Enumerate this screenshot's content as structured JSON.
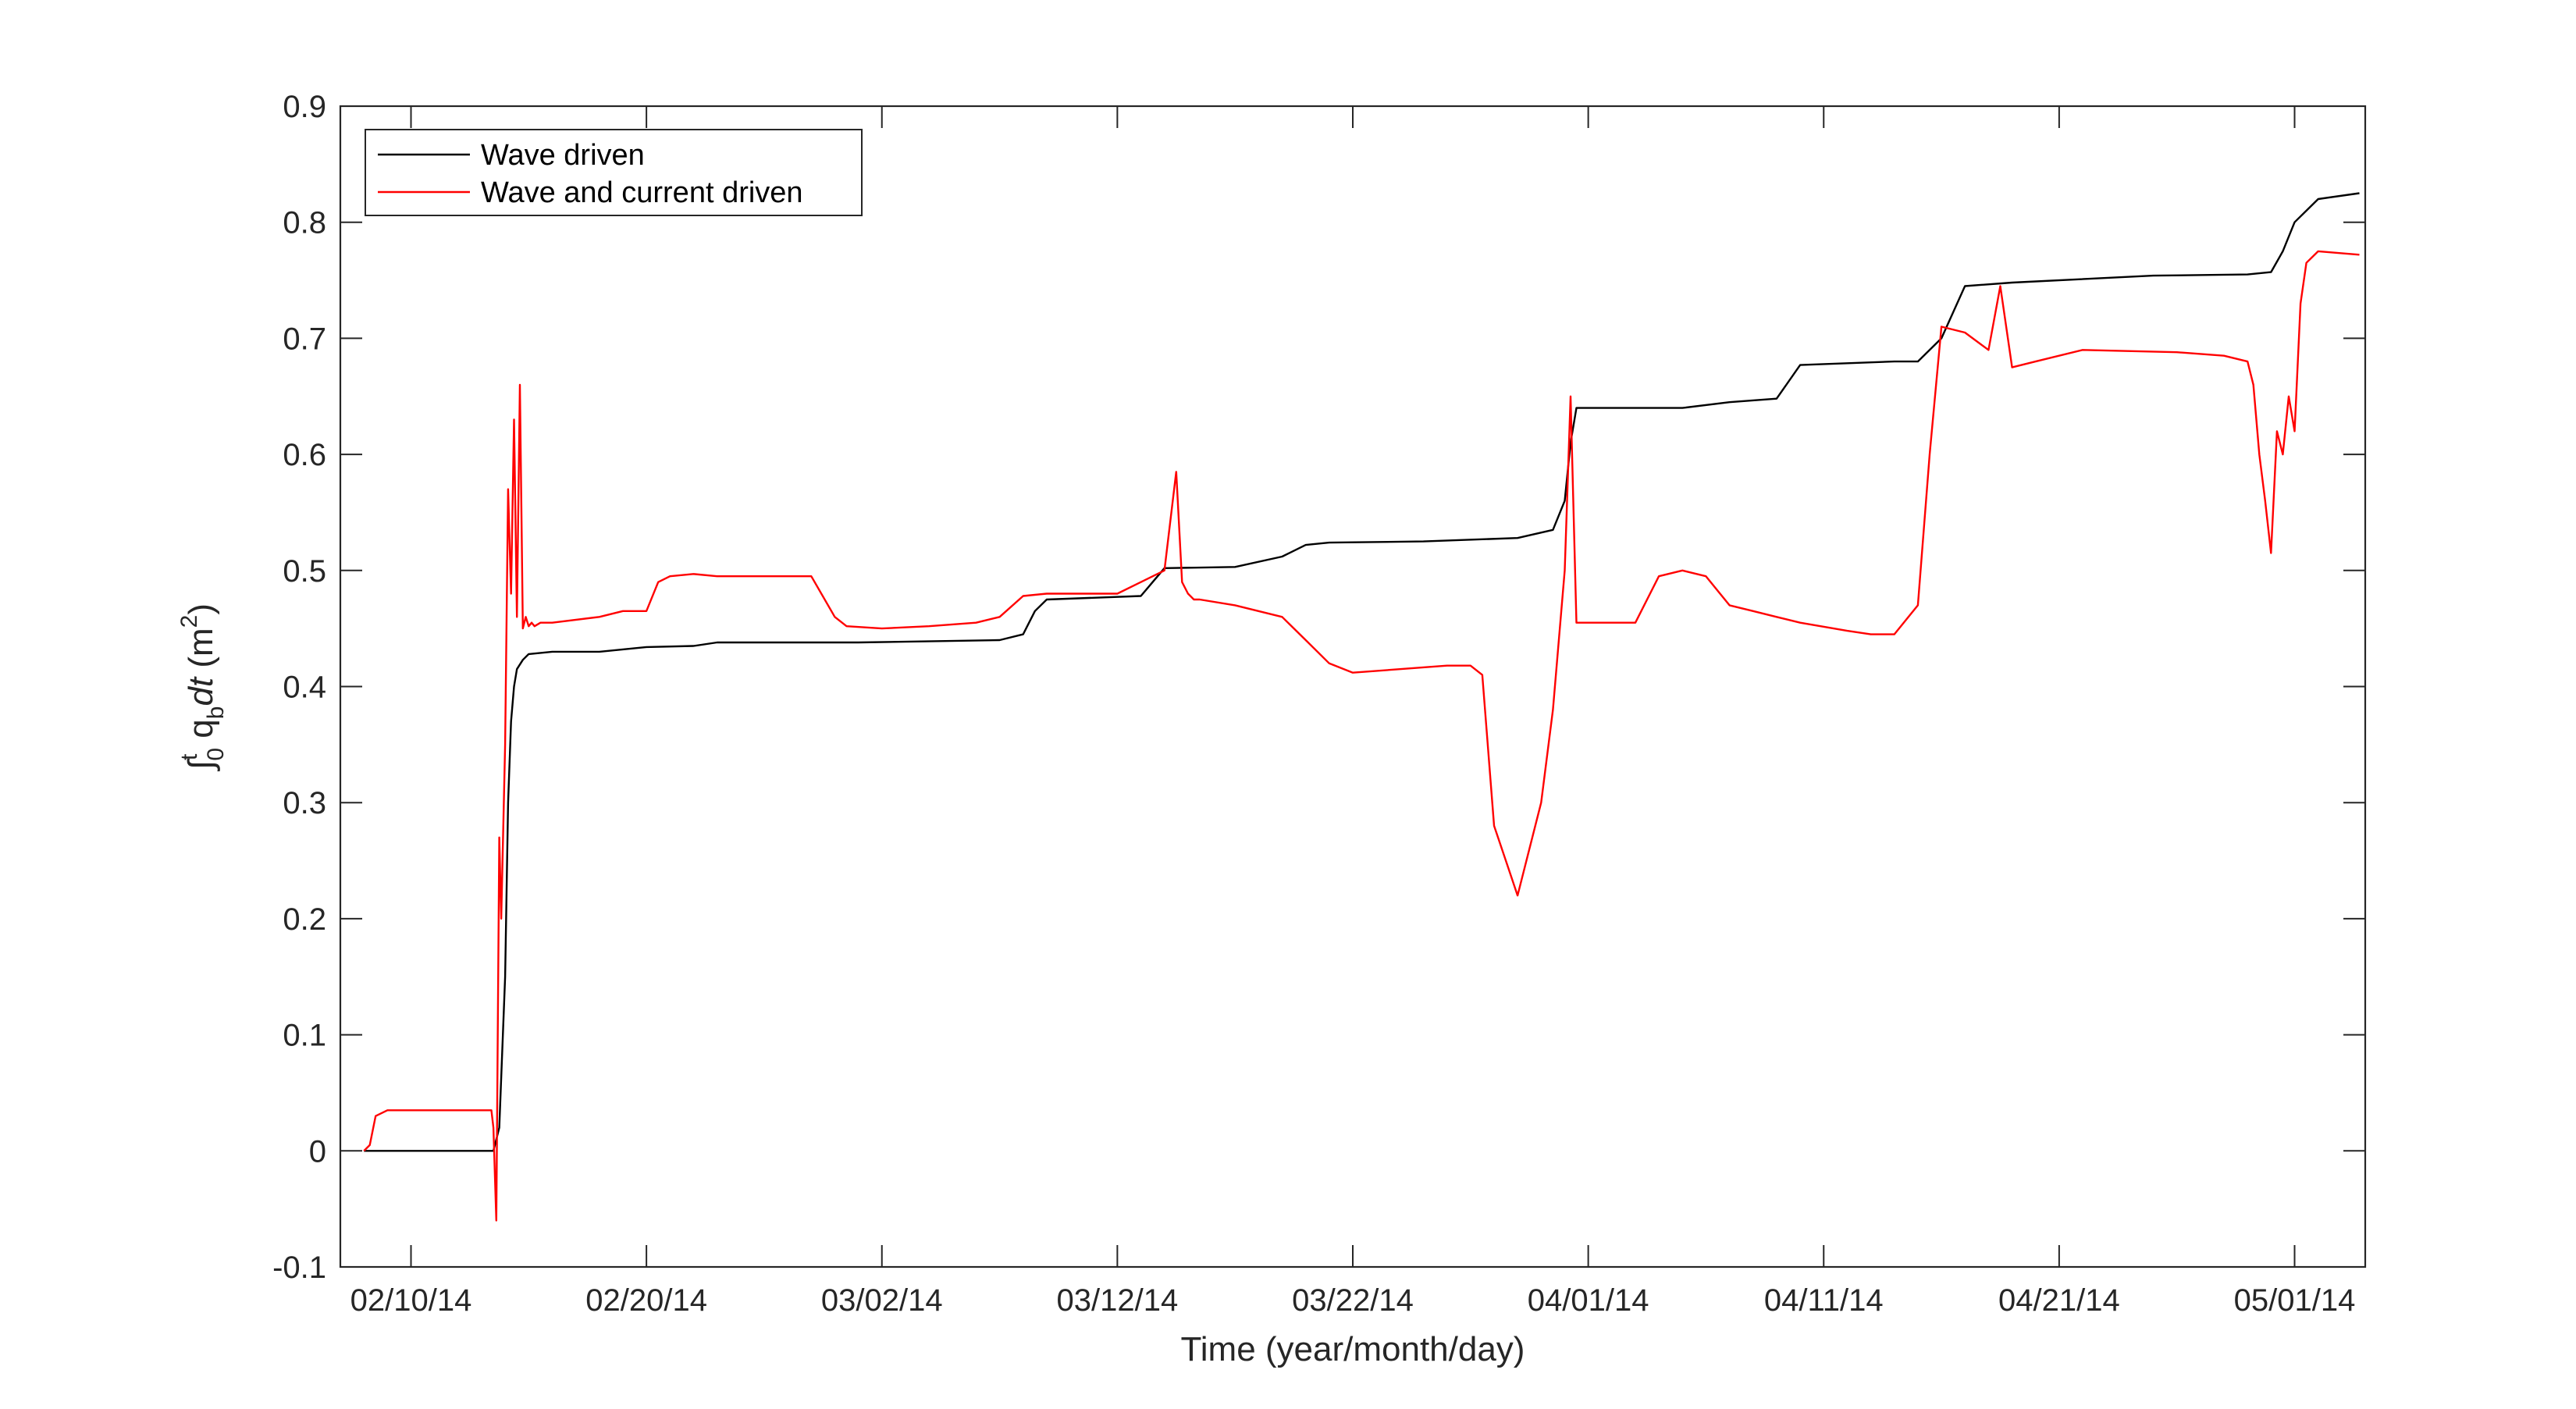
{
  "chart_data": {
    "type": "line",
    "title": "",
    "xlabel": "Time (year/month/day)",
    "ylabel_parts": {
      "integral": "∫",
      "upper": "t",
      "lower": "0",
      "q": " q",
      "qsub": "b",
      "dt": "dt",
      "unit_open": " (m",
      "unit_sup": "2",
      "unit_close": ")"
    },
    "ylim": [
      -0.1,
      0.9
    ],
    "yticks": [
      -0.1,
      0,
      0.1,
      0.2,
      0.3,
      0.4,
      0.5,
      0.6,
      0.7,
      0.8,
      0.9
    ],
    "yticklabels": [
      "-0.1",
      "0",
      "0.1",
      "0.2",
      "0.3",
      "0.4",
      "0.5",
      "0.6",
      "0.7",
      "0.8",
      "0.9"
    ],
    "xlim": [
      "2014-02-07",
      "2014-05-04"
    ],
    "xticks": [
      "2014-02-10",
      "2014-02-20",
      "2014-03-02",
      "2014-03-12",
      "2014-03-22",
      "2014-04-01",
      "2014-04-11",
      "2014-04-21",
      "2014-05-01"
    ],
    "xticklabels": [
      "02/10/14",
      "02/20/14",
      "03/02/14",
      "03/12/14",
      "03/22/14",
      "04/01/14",
      "04/11/14",
      "04/21/14",
      "05/01/14"
    ],
    "grid": false,
    "legend_position": "top-left",
    "series": [
      {
        "name": "Wave driven",
        "color": "#000000",
        "x": [
          "2014-02-08",
          "2014-02-13 12:00",
          "2014-02-13 18:00",
          "2014-02-14",
          "2014-02-14 03:00",
          "2014-02-14 06:00",
          "2014-02-14 09:00",
          "2014-02-14 12:00",
          "2014-02-14 18:00",
          "2014-02-15",
          "2014-02-16",
          "2014-02-18",
          "2014-02-19",
          "2014-02-20",
          "2014-02-22",
          "2014-02-23",
          "2014-03-01",
          "2014-03-07",
          "2014-03-08",
          "2014-03-08 12:00",
          "2014-03-09",
          "2014-03-13",
          "2014-03-13 12:00",
          "2014-03-14",
          "2014-03-17",
          "2014-03-19",
          "2014-03-20",
          "2014-03-21",
          "2014-03-25",
          "2014-03-29",
          "2014-03-30 12:00",
          "2014-03-31",
          "2014-03-31 06:00",
          "2014-03-31 12:00",
          "2014-04-02",
          "2014-04-05",
          "2014-04-07",
          "2014-04-09",
          "2014-04-10",
          "2014-04-14",
          "2014-04-15",
          "2014-04-16",
          "2014-04-17",
          "2014-04-19",
          "2014-04-25",
          "2014-04-29",
          "2014-04-30",
          "2014-04-30 12:00",
          "2014-05-01",
          "2014-05-02",
          "2014-05-03 18:00"
        ],
        "values": [
          0.0,
          0.0,
          0.02,
          0.15,
          0.3,
          0.37,
          0.4,
          0.415,
          0.423,
          0.428,
          0.43,
          0.43,
          0.432,
          0.434,
          0.435,
          0.438,
          0.438,
          0.44,
          0.445,
          0.465,
          0.475,
          0.478,
          0.49,
          0.502,
          0.503,
          0.512,
          0.522,
          0.524,
          0.525,
          0.528,
          0.535,
          0.56,
          0.61,
          0.64,
          0.64,
          0.64,
          0.645,
          0.648,
          0.677,
          0.68,
          0.68,
          0.7,
          0.745,
          0.748,
          0.754,
          0.755,
          0.757,
          0.775,
          0.8,
          0.82,
          0.825
        ]
      },
      {
        "name": "Wave and current driven",
        "color": "#ff0000",
        "x": [
          "2014-02-08",
          "2014-02-08 06:00",
          "2014-02-08 12:00",
          "2014-02-09",
          "2014-02-13 10:00",
          "2014-02-13 12:00",
          "2014-02-13 15:00",
          "2014-02-13 18:00",
          "2014-02-13 20:00",
          "2014-02-14",
          "2014-02-14 03:00",
          "2014-02-14 06:00",
          "2014-02-14 09:00",
          "2014-02-14 12:00",
          "2014-02-14 15:00",
          "2014-02-14 18:00",
          "2014-02-14 21:00",
          "2014-02-15",
          "2014-02-15 03:00",
          "2014-02-15 06:00",
          "2014-02-15 12:00",
          "2014-02-16",
          "2014-02-18",
          "2014-02-19",
          "2014-02-20",
          "2014-02-20 12:00",
          "2014-02-21",
          "2014-02-22",
          "2014-02-23",
          "2014-02-27",
          "2014-02-28",
          "2014-02-28 12:00",
          "2014-03-02",
          "2014-03-04",
          "2014-03-06",
          "2014-03-07",
          "2014-03-08",
          "2014-03-09",
          "2014-03-12",
          "2014-03-13",
          "2014-03-14",
          "2014-03-14 12:00",
          "2014-03-14 18:00",
          "2014-03-15",
          "2014-03-15 06:00",
          "2014-03-15 12:00",
          "2014-03-17",
          "2014-03-19",
          "2014-03-20",
          "2014-03-21",
          "2014-03-22",
          "2014-03-24",
          "2014-03-26",
          "2014-03-27",
          "2014-03-27 12:00",
          "2014-03-28",
          "2014-03-28 12:00",
          "2014-03-29",
          "2014-03-29 12:00",
          "2014-03-30",
          "2014-03-30 12:00",
          "2014-03-31",
          "2014-03-31 06:00",
          "2014-03-31 12:00",
          "2014-04-01",
          "2014-04-03",
          "2014-04-04",
          "2014-04-05",
          "2014-04-06",
          "2014-04-07",
          "2014-04-08",
          "2014-04-09",
          "2014-04-10",
          "2014-04-12",
          "2014-04-13",
          "2014-04-14",
          "2014-04-15",
          "2014-04-15 12:00",
          "2014-04-16",
          "2014-04-17",
          "2014-04-18",
          "2014-04-18 12:00",
          "2014-04-19",
          "2014-04-20",
          "2014-04-22",
          "2014-04-26",
          "2014-04-28",
          "2014-04-29",
          "2014-04-29 06:00",
          "2014-04-29 12:00",
          "2014-04-29 18:00",
          "2014-04-30",
          "2014-04-30 06:00",
          "2014-04-30 12:00",
          "2014-04-30 18:00",
          "2014-05-01",
          "2014-05-01 06:00",
          "2014-05-01 12:00",
          "2014-05-02",
          "2014-05-03 18:00"
        ],
        "values": [
          0.0,
          0.005,
          0.03,
          0.035,
          0.035,
          0.02,
          -0.06,
          0.27,
          0.2,
          0.35,
          0.57,
          0.48,
          0.63,
          0.46,
          0.66,
          0.45,
          0.46,
          0.452,
          0.455,
          0.452,
          0.455,
          0.455,
          0.46,
          0.465,
          0.465,
          0.49,
          0.495,
          0.497,
          0.495,
          0.495,
          0.46,
          0.452,
          0.45,
          0.452,
          0.455,
          0.46,
          0.478,
          0.48,
          0.48,
          0.49,
          0.5,
          0.585,
          0.49,
          0.48,
          0.475,
          0.475,
          0.47,
          0.46,
          0.44,
          0.42,
          0.412,
          0.415,
          0.418,
          0.418,
          0.41,
          0.28,
          0.25,
          0.22,
          0.26,
          0.3,
          0.38,
          0.5,
          0.65,
          0.455,
          0.455,
          0.455,
          0.495,
          0.5,
          0.495,
          0.47,
          0.465,
          0.46,
          0.455,
          0.448,
          0.445,
          0.445,
          0.47,
          0.6,
          0.71,
          0.705,
          0.69,
          0.745,
          0.675,
          0.68,
          0.69,
          0.688,
          0.685,
          0.68,
          0.66,
          0.6,
          0.56,
          0.515,
          0.62,
          0.6,
          0.65,
          0.62,
          0.73,
          0.765,
          0.775,
          0.772
        ]
      }
    ]
  }
}
